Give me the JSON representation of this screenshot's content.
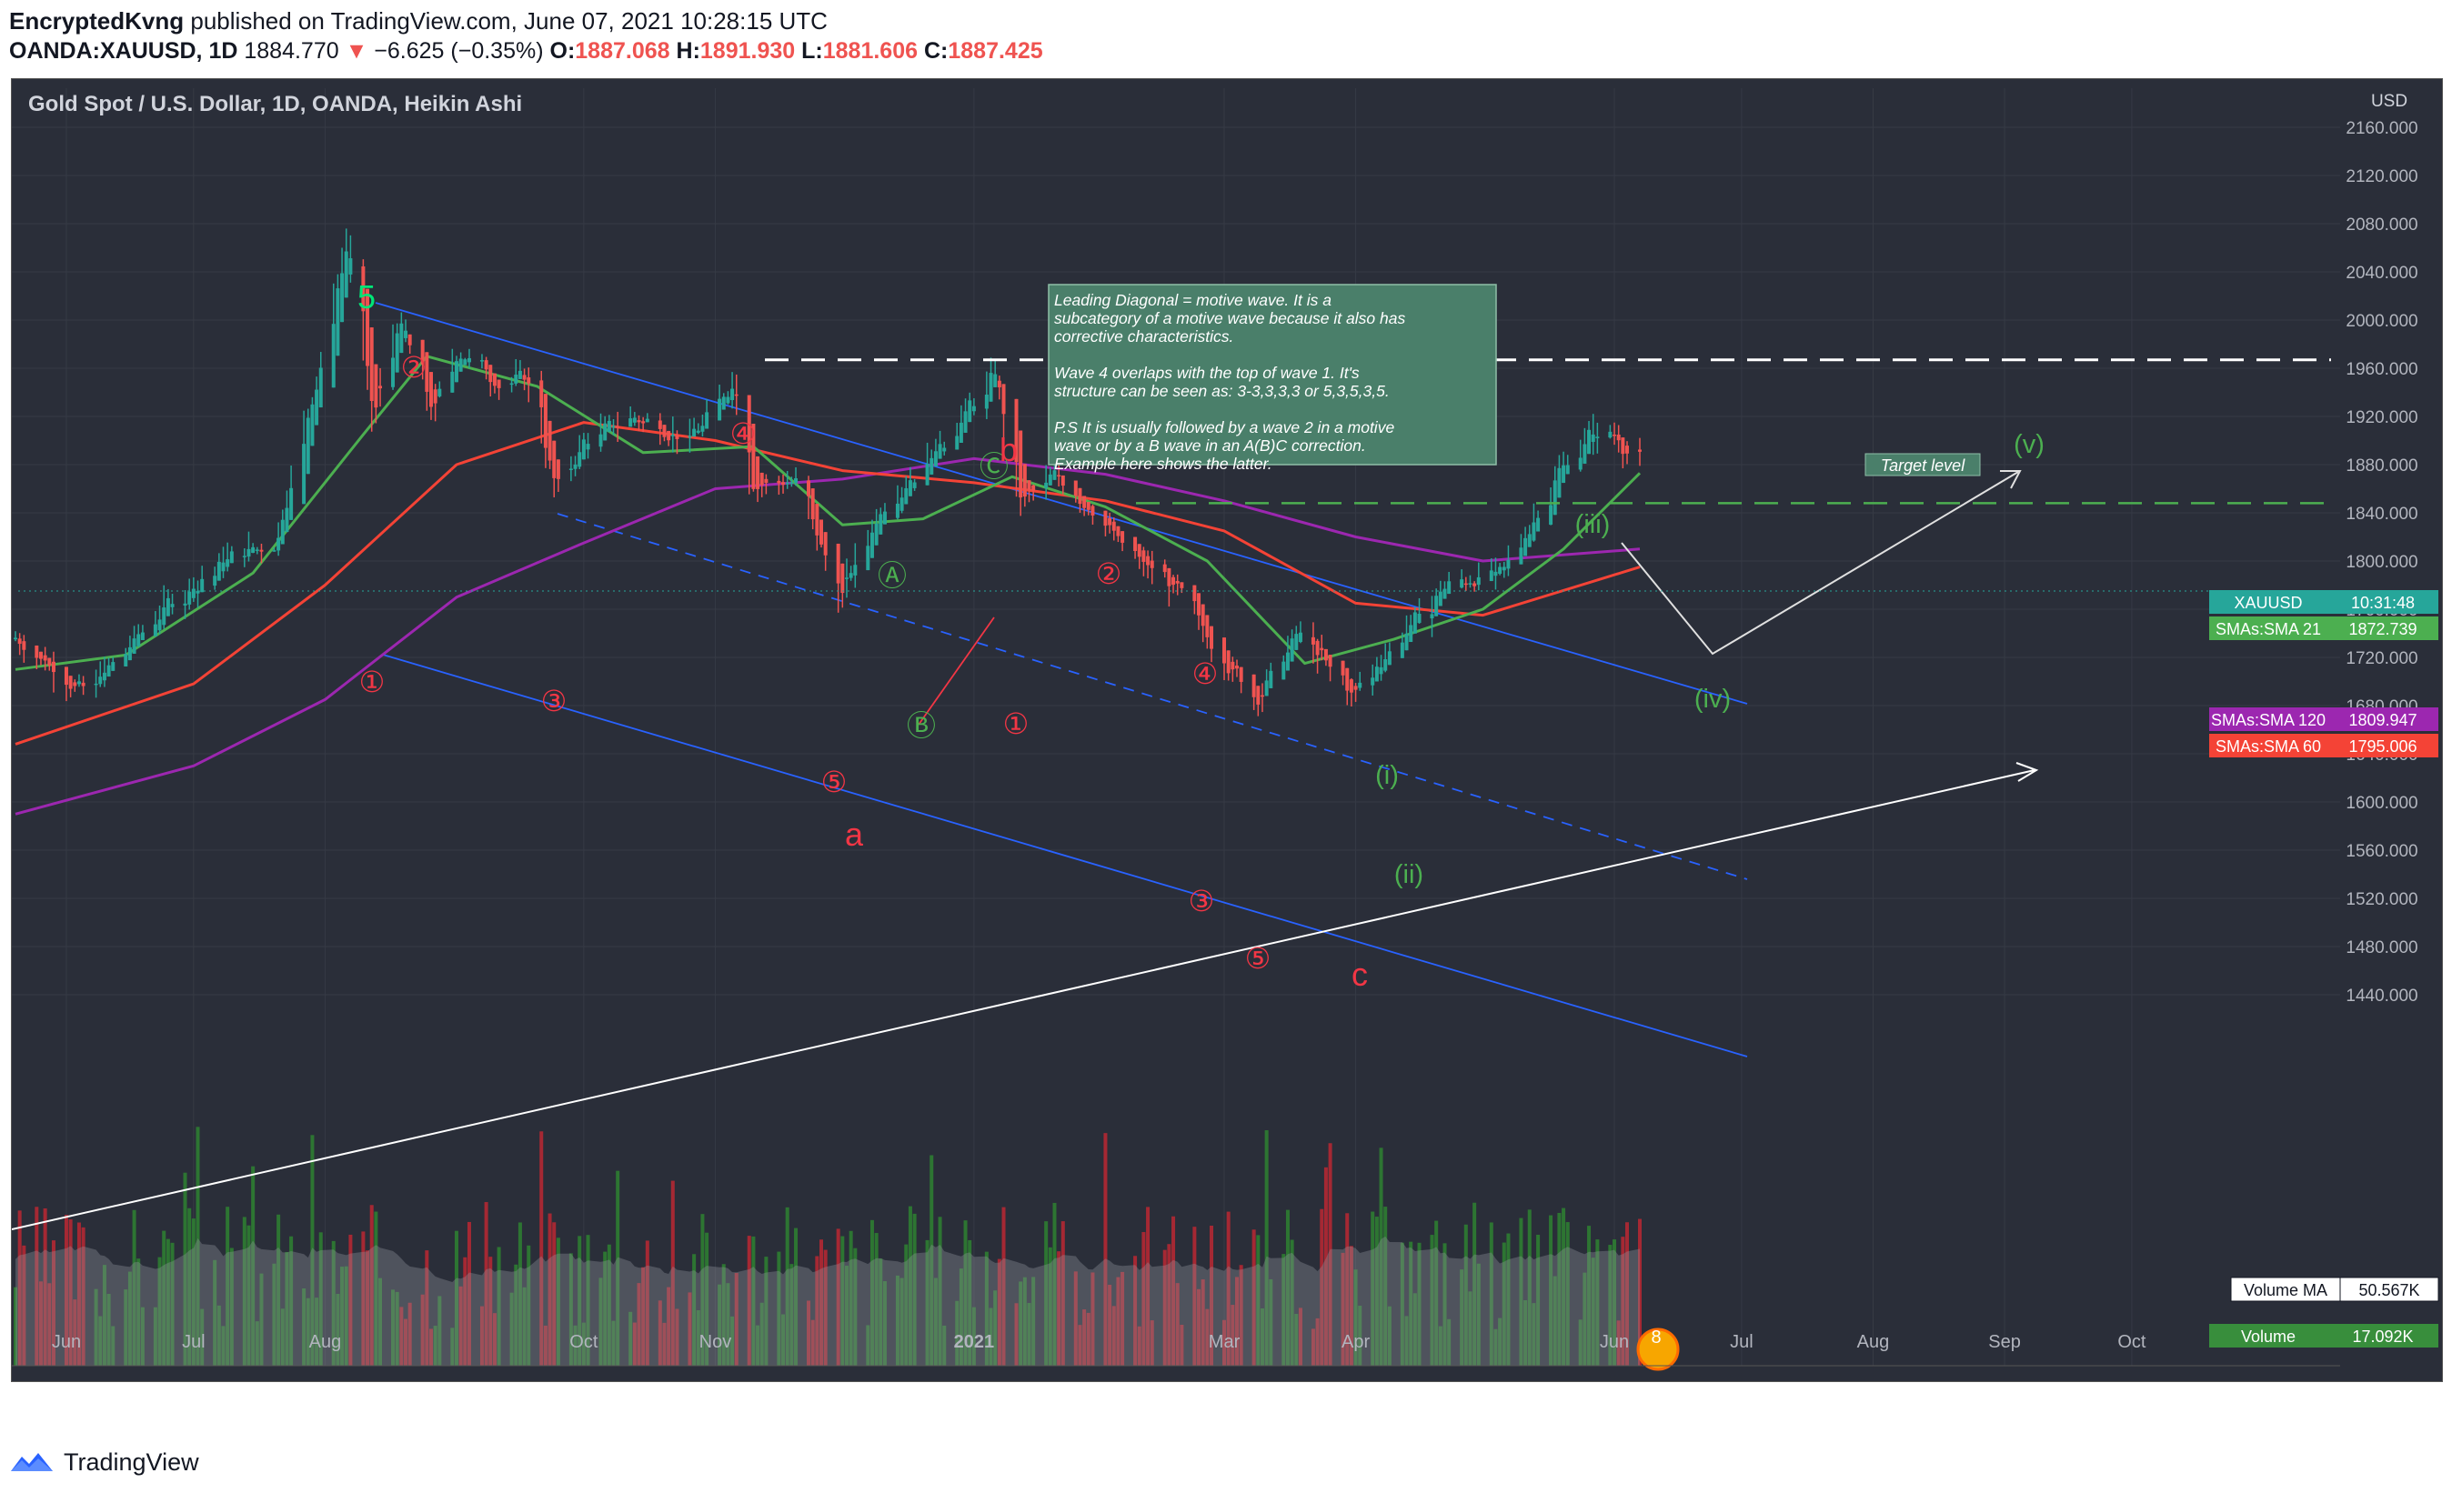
{
  "header": {
    "author": "EncryptedKvng",
    "published_text": "published on TradingView.com, June 07, 2021 10:28:15 UTC",
    "symbol": "OANDA:XAUUSD, 1D",
    "last_price": "1884.770",
    "change_arrow": "▼",
    "change": "−6.625 (−0.35%)",
    "o_label": "O:",
    "o_value": "1887.068",
    "h_label": "H:",
    "h_value": "1891.930",
    "l_label": "L:",
    "l_value": "1881.606",
    "c_label": "C:",
    "c_value": "1887.425"
  },
  "chart_title": "Gold Spot / U.S. Dollar, 1D, OANDA, Heikin Ashi",
  "currency": "USD",
  "footer": {
    "brand": "TradingView",
    "logo_icon": "tradingview-logo-icon"
  },
  "colors": {
    "background": "#2a2e39",
    "up_candle": "#26a69a",
    "down_candle": "#ef5350",
    "sma21": "#4caf50",
    "sma60": "#f44336",
    "sma120": "#9c27b0",
    "channel": "#2962ff",
    "wave_red": "#f23645",
    "wave_green": "#4caf50"
  },
  "chart_data": {
    "type": "candlestick",
    "price_axis": {
      "ticks": [
        2160,
        2120,
        2080,
        2040,
        2000,
        1960,
        1920,
        1880,
        1840,
        1800,
        1760,
        1720,
        1680,
        1640,
        1600,
        1560,
        1520,
        1480,
        1440
      ],
      "tick_labels": [
        "2160.000",
        "2120.000",
        "2080.000",
        "2040.000",
        "2000.000",
        "1960.000",
        "1920.000",
        "1880.000",
        "1840.000",
        "1800.000",
        "1760.000",
        "1720.000",
        "1680.000",
        "1640.000",
        "1600.000",
        "1560.000",
        "1520.000",
        "1480.000",
        "1440.000"
      ],
      "ylim": [
        1420,
        2200
      ]
    },
    "time_axis": {
      "labels": [
        "Jun",
        "Jul",
        "Aug",
        "Oct",
        "Nov",
        "2021",
        "Mar",
        "Apr",
        "Jun",
        "Jul",
        "Aug",
        "Sep",
        "Oct"
      ],
      "dates": [
        "2020-06-01",
        "2020-07-01",
        "2020-08-01",
        "2020-10-01",
        "2020-11-01",
        "2021-01-01",
        "2021-03-01",
        "2021-04-01",
        "2021-06-01",
        "2021-07-01",
        "2021-08-01",
        "2021-09-01",
        "2021-10-01"
      ]
    },
    "price_path": [
      [
        "2020-05-20",
        1735
      ],
      [
        "2020-06-05",
        1690
      ],
      [
        "2020-06-25",
        1765
      ],
      [
        "2020-07-10",
        1805
      ],
      [
        "2020-07-20",
        1815
      ],
      [
        "2020-07-31",
        1970
      ],
      [
        "2020-08-06",
        2065
      ],
      [
        "2020-08-12",
        1920
      ],
      [
        "2020-08-18",
        2000
      ],
      [
        "2020-08-26",
        1925
      ],
      [
        "2020-09-01",
        1975
      ],
      [
        "2020-09-10",
        1950
      ],
      [
        "2020-09-18",
        1950
      ],
      [
        "2020-09-24",
        1860
      ],
      [
        "2020-10-01",
        1900
      ],
      [
        "2020-10-12",
        1920
      ],
      [
        "2020-10-26",
        1900
      ],
      [
        "2020-11-05",
        1950
      ],
      [
        "2020-11-09",
        1865
      ],
      [
        "2020-11-20",
        1865
      ],
      [
        "2020-11-30",
        1770
      ],
      [
        "2020-12-10",
        1845
      ],
      [
        "2020-12-20",
        1880
      ],
      [
        "2021-01-06",
        1955
      ],
      [
        "2021-01-11",
        1850
      ],
      [
        "2021-01-20",
        1870
      ],
      [
        "2021-01-28",
        1845
      ],
      [
        "2021-02-05",
        1810
      ],
      [
        "2021-02-18",
        1775
      ],
      [
        "2021-02-26",
        1730
      ],
      [
        "2021-03-08",
        1685
      ],
      [
        "2021-03-18",
        1740
      ],
      [
        "2021-03-31",
        1690
      ],
      [
        "2021-04-12",
        1740
      ],
      [
        "2021-04-22",
        1780
      ],
      [
        "2021-05-05",
        1790
      ],
      [
        "2021-05-12",
        1830
      ],
      [
        "2021-05-18",
        1870
      ],
      [
        "2021-05-26",
        1905
      ],
      [
        "2021-06-01",
        1905
      ],
      [
        "2021-06-04",
        1890
      ],
      [
        "2021-06-07",
        1885
      ]
    ],
    "series": [
      {
        "name": "SMAs:SMA 21",
        "last_value": "1872.739",
        "color": "#4caf50"
      },
      {
        "name": "SMAs:SMA 120",
        "last_value": "1809.947",
        "color": "#9c27b0"
      },
      {
        "name": "SMAs:SMA 60",
        "last_value": "1795.006",
        "color": "#f44336"
      }
    ],
    "sma_paths": {
      "sma21": [
        [
          "2020-05-20",
          1710
        ],
        [
          "2020-06-15",
          1722
        ],
        [
          "2020-07-15",
          1790
        ],
        [
          "2020-08-10",
          1905
        ],
        [
          "2020-08-25",
          1970
        ],
        [
          "2020-09-20",
          1945
        ],
        [
          "2020-10-15",
          1890
        ],
        [
          "2020-11-10",
          1895
        ],
        [
          "2020-12-01",
          1830
        ],
        [
          "2020-12-20",
          1835
        ],
        [
          "2021-01-10",
          1870
        ],
        [
          "2021-02-01",
          1845
        ],
        [
          "2021-02-25",
          1800
        ],
        [
          "2021-03-20",
          1715
        ],
        [
          "2021-04-10",
          1735
        ],
        [
          "2021-05-01",
          1760
        ],
        [
          "2021-05-20",
          1810
        ],
        [
          "2021-06-07",
          1873
        ]
      ],
      "sma60": [
        [
          "2020-05-20",
          1648
        ],
        [
          "2020-07-01",
          1698
        ],
        [
          "2020-08-01",
          1780
        ],
        [
          "2020-09-01",
          1880
        ],
        [
          "2020-10-01",
          1915
        ],
        [
          "2020-11-01",
          1900
        ],
        [
          "2020-12-01",
          1875
        ],
        [
          "2021-01-01",
          1865
        ],
        [
          "2021-02-01",
          1850
        ],
        [
          "2021-03-01",
          1825
        ],
        [
          "2021-04-01",
          1765
        ],
        [
          "2021-05-01",
          1755
        ],
        [
          "2021-06-07",
          1795
        ]
      ],
      "sma120": [
        [
          "2020-05-20",
          1590
        ],
        [
          "2020-07-01",
          1630
        ],
        [
          "2020-08-01",
          1685
        ],
        [
          "2020-09-01",
          1770
        ],
        [
          "2020-10-01",
          1815
        ],
        [
          "2020-11-01",
          1860
        ],
        [
          "2020-12-01",
          1868
        ],
        [
          "2021-01-01",
          1885
        ],
        [
          "2021-02-01",
          1872
        ],
        [
          "2021-03-01",
          1850
        ],
        [
          "2021-04-01",
          1820
        ],
        [
          "2021-05-01",
          1800
        ],
        [
          "2021-06-07",
          1810
        ]
      ]
    },
    "volume": {
      "label": "Volume MA",
      "ma_value": "50.567K",
      "current_label": "Volume",
      "current_value": "17.092K"
    },
    "current_price_tag": {
      "symbol": "XAUUSD",
      "countdown": "10:31:48"
    },
    "annotation_text": [
      "Leading Diagonal = motive wave. It is a",
      "subcategory of a motive wave because it also has",
      "corrective characteristics.",
      "",
      "Wave 4 overlaps with the top of wave 1. It's",
      "structure can be seen as: 3-3,3,3,3 or 5,3,5,3,5.",
      "",
      "P.S It is usually followed by a wave 2 in a motive",
      "wave or by a B wave in an A(B)C correction.",
      "Example here shows the latter."
    ],
    "target_level": {
      "label": "Target level",
      "price": 1967
    },
    "support_level": {
      "price": 1848
    },
    "labels": {
      "wave5_top": "5",
      "circled_red": [
        "①",
        "②",
        "③",
        "④",
        "⑤",
        "①",
        "②",
        "③",
        "④",
        "⑤"
      ],
      "circled_green": [
        "Ⓐ",
        "Ⓑ",
        "Ⓒ"
      ],
      "abc": [
        "a",
        "b",
        "c"
      ],
      "green_roman": [
        "(i)",
        "(ii)",
        "(iii)",
        "(iv)",
        "(v)"
      ],
      "event_badge": "8"
    }
  }
}
